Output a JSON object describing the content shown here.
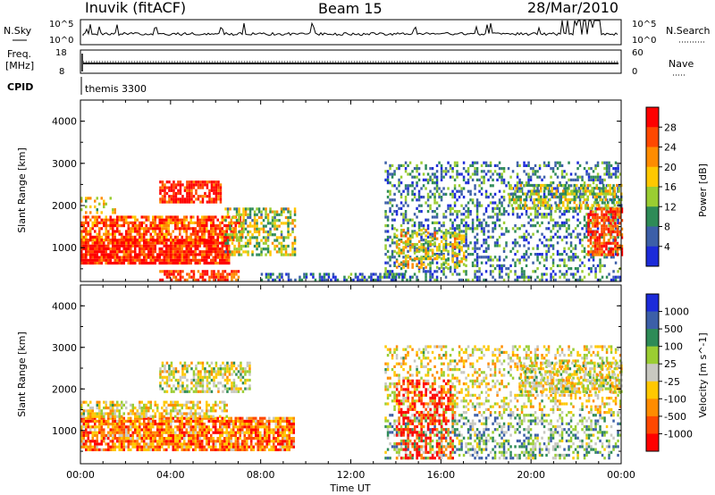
{
  "header": {
    "station": "Inuvik (fitACF)",
    "beam": "Beam 15",
    "date": "28/Mar/2010"
  },
  "aux_panels": {
    "nsky_label": "N.Sky",
    "nsky_ticks": [
      "10^5",
      "10^0"
    ],
    "nsearch_label": "N.Search",
    "nsearch_ticks": [
      "10^5",
      "10^0"
    ],
    "freq_label_1": "Freq.",
    "freq_label_2": "[MHz]",
    "freq_ticks": [
      "18",
      "8"
    ],
    "nave_label": "Nave",
    "nave_ticks": [
      "60",
      "0"
    ],
    "cpid_label": "CPID",
    "cpid_value": "themis 3300"
  },
  "chart_data": [
    {
      "type": "heatmap",
      "name": "power",
      "ylabel": "Slant Range [km]",
      "colorbar_label": "Power [dB]",
      "colorbar_ticks": [
        "28",
        "24",
        "20",
        "16",
        "12",
        "8",
        "4"
      ],
      "colorbar_colors": [
        "#ff0000",
        "#ff4800",
        "#ff8c00",
        "#ffc800",
        "#9acd32",
        "#2e8b57",
        "#3c5fa8",
        "#1c2bd9"
      ],
      "xlim": [
        "00:00",
        "24:00"
      ],
      "ylim": [
        200,
        4500
      ],
      "yticks": [
        "4000",
        "3000",
        "2000",
        "1000"
      ],
      "regions": [
        {
          "t0": 0.0,
          "t1": 6.6,
          "r0": 600,
          "r1": 1150,
          "level": 0.92,
          "density": 0.9
        },
        {
          "t0": 0.0,
          "t1": 7.2,
          "r0": 1150,
          "r1": 1700,
          "level": 0.8,
          "density": 0.75
        },
        {
          "t0": 3.5,
          "t1": 6.2,
          "r0": 2050,
          "r1": 2550,
          "level": 0.88,
          "density": 0.8
        },
        {
          "t0": 6.4,
          "t1": 9.5,
          "r0": 800,
          "r1": 1900,
          "level": 0.45,
          "density": 0.55
        },
        {
          "t0": 0.0,
          "t1": 1.5,
          "r0": 1800,
          "r1": 2200,
          "level": 0.5,
          "density": 0.3
        },
        {
          "t0": 3.5,
          "t1": 7.0,
          "r0": 200,
          "r1": 450,
          "level": 0.85,
          "density": 0.6
        },
        {
          "t0": 8.0,
          "t1": 14.5,
          "r0": 200,
          "r1": 400,
          "level": 0.2,
          "density": 0.55
        },
        {
          "t0": 13.5,
          "t1": 24.0,
          "r0": 200,
          "r1": 3000,
          "level": 0.25,
          "density": 0.35
        },
        {
          "t0": 19.0,
          "t1": 24.0,
          "r0": 1900,
          "r1": 2500,
          "level": 0.45,
          "density": 0.55
        },
        {
          "t0": 22.5,
          "t1": 24.0,
          "r0": 800,
          "r1": 1900,
          "level": 0.85,
          "density": 0.7
        },
        {
          "t0": 14.0,
          "t1": 17.0,
          "r0": 500,
          "r1": 1400,
          "level": 0.55,
          "density": 0.45
        }
      ]
    },
    {
      "type": "heatmap",
      "name": "velocity",
      "ylabel": "Slant Range [km]",
      "xlabel": "Time UT",
      "colorbar_label": "Velocity [m s^-1]",
      "colorbar_ticks": [
        "1000",
        "500",
        "100",
        "25",
        "-25",
        "-100",
        "-500",
        "-1000"
      ],
      "colorbar_colors": [
        "#1c2bd9",
        "#3c5fa8",
        "#2e8b57",
        "#9acd32",
        "#c8c8c0",
        "#ffc800",
        "#ff8c00",
        "#ff4800",
        "#ff0000"
      ],
      "xlim": [
        "00:00",
        "24:00"
      ],
      "xticks": [
        "00:00",
        "04:00",
        "08:00",
        "12:00",
        "16:00",
        "20:00",
        "00:00"
      ],
      "ylim": [
        200,
        4500
      ],
      "yticks": [
        "4000",
        "3000",
        "2000",
        "1000"
      ],
      "regions": [
        {
          "t0": 0.0,
          "t1": 9.5,
          "r0": 500,
          "r1": 1300,
          "level": 0.25,
          "density": 0.85
        },
        {
          "t0": 0.0,
          "t1": 6.5,
          "r0": 1300,
          "r1": 1700,
          "level": 0.45,
          "density": 0.6
        },
        {
          "t0": 3.5,
          "t1": 7.5,
          "r0": 1900,
          "r1": 2600,
          "level": 0.5,
          "density": 0.55
        },
        {
          "t0": 13.5,
          "t1": 24.0,
          "r0": 300,
          "r1": 1400,
          "level": 0.65,
          "density": 0.4
        },
        {
          "t0": 13.5,
          "t1": 24.0,
          "r0": 1400,
          "r1": 3000,
          "level": 0.45,
          "density": 0.35
        },
        {
          "t0": 19.5,
          "t1": 24.0,
          "r0": 1900,
          "r1": 2600,
          "level": 0.5,
          "density": 0.55
        },
        {
          "t0": 14.0,
          "t1": 16.5,
          "r0": 300,
          "r1": 2200,
          "level": 0.1,
          "density": 0.45
        }
      ]
    }
  ]
}
